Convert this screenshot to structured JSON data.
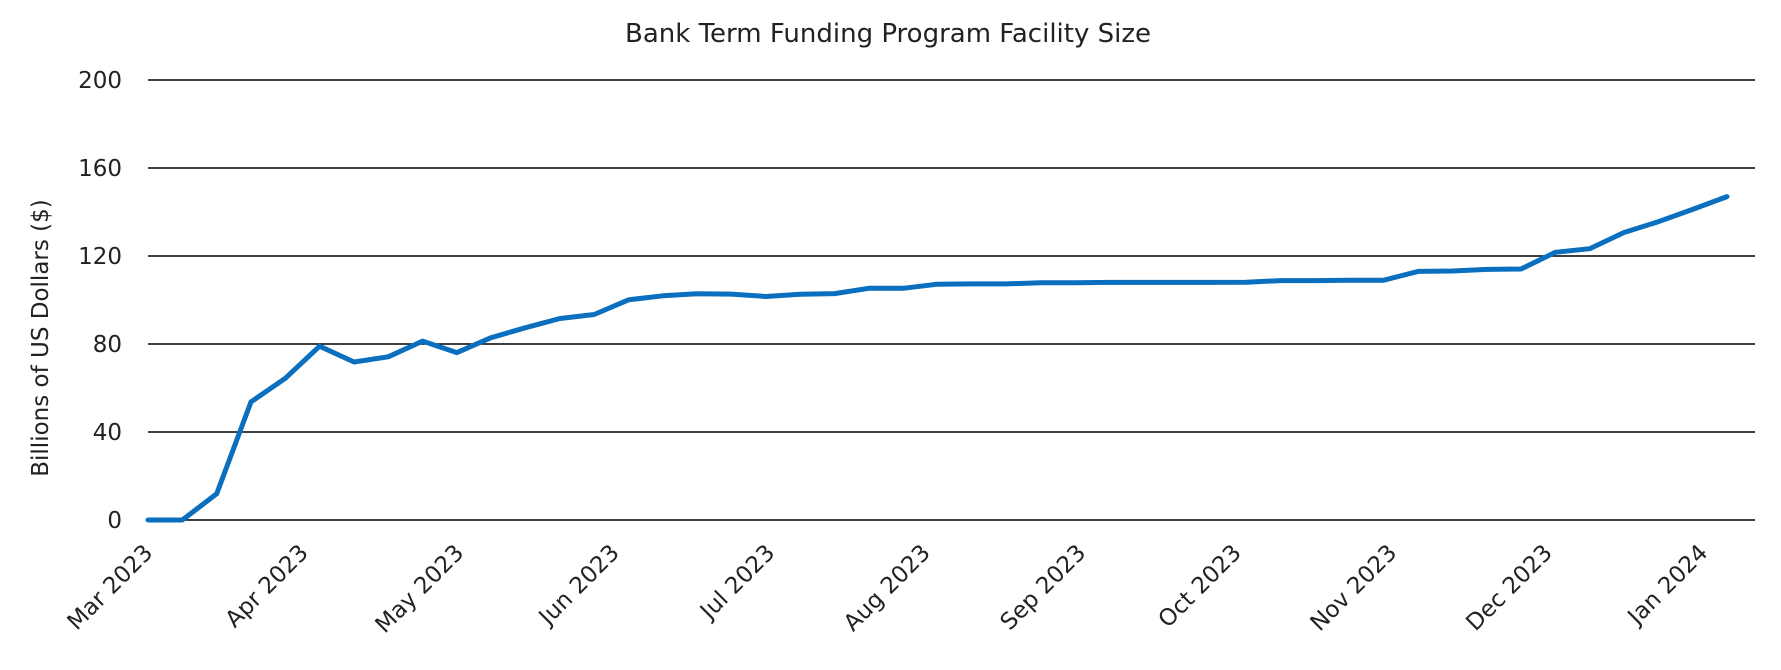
{
  "chart_data": {
    "type": "line",
    "title": "Bank Term Funding Program Facility Size",
    "xlabel": "",
    "ylabel": "Billions  of US Dollars ($)",
    "ylim": [
      0,
      200
    ],
    "yticks": [
      0,
      40,
      80,
      120,
      160,
      200
    ],
    "grid": true,
    "x_tick_labels": [
      "Mar 2023",
      "Apr 2023",
      "May 2023",
      "Jun 2023",
      "Jul 2023",
      "Aug 2023",
      "Sep 2023",
      "Oct 2023",
      "Nov 2023",
      "Dec 2023",
      "Jan 2024"
    ],
    "series": [
      {
        "name": "Facility Size",
        "color": "#0a6fbf",
        "values": [
          0,
          0,
          11.9,
          53.7,
          64.4,
          79.0,
          71.8,
          74.2,
          81.3,
          76.1,
          82.9,
          87.4,
          91.6,
          93.4,
          100.1,
          101.9,
          102.8,
          102.7,
          101.6,
          102.6,
          102.9,
          105.3,
          105.3,
          107.2,
          107.3,
          107.3,
          107.8,
          107.8,
          108.0,
          108.0,
          108.0,
          108.0,
          108.1,
          108.8,
          108.8,
          109.0,
          109.0,
          113.0,
          113.2,
          113.9,
          114.1,
          121.7,
          123.3,
          130.7,
          135.6,
          141.2,
          147.0
        ]
      }
    ]
  }
}
